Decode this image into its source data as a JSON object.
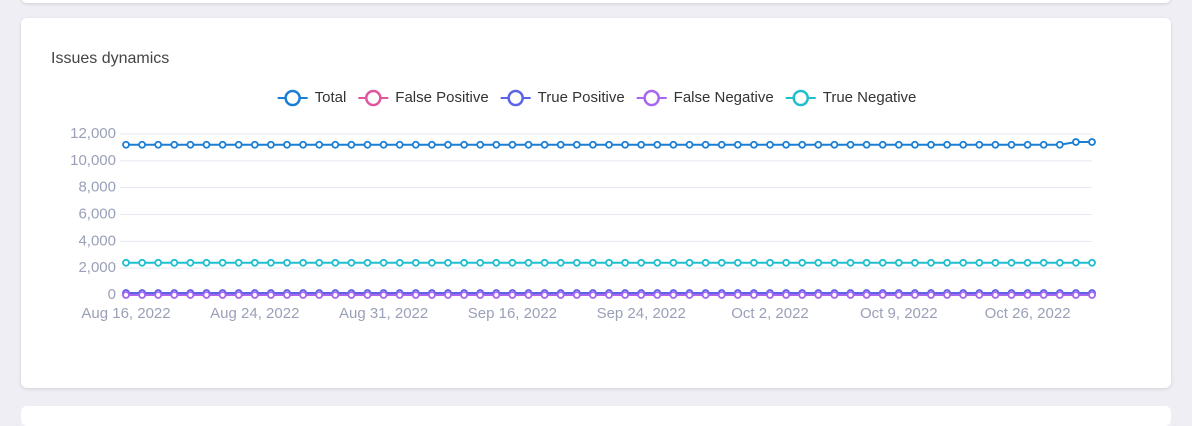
{
  "chart_data": {
    "type": "line",
    "title": "Issues dynamics",
    "categories": [
      "Aug 16, 2022",
      null,
      null,
      null,
      null,
      null,
      null,
      null,
      "Aug 24, 2022",
      null,
      null,
      null,
      null,
      null,
      null,
      null,
      "Aug 31, 2022",
      null,
      null,
      null,
      null,
      null,
      null,
      null,
      "Sep 16, 2022",
      null,
      null,
      null,
      null,
      null,
      null,
      null,
      "Sep 24, 2022",
      null,
      null,
      null,
      null,
      null,
      null,
      null,
      "Oct 2, 2022",
      null,
      null,
      null,
      null,
      null,
      null,
      null,
      "Oct 9, 2022",
      null,
      null,
      null,
      null,
      null,
      null,
      null,
      "Oct 26, 2022",
      null,
      null,
      null,
      null
    ],
    "series": [
      {
        "name": "Total",
        "color": "#1a7fd4",
        "values": [
          11200,
          11200,
          11200,
          11200,
          11200,
          11200,
          11200,
          11200,
          11200,
          11200,
          11200,
          11200,
          11200,
          11200,
          11200,
          11200,
          11200,
          11200,
          11200,
          11200,
          11200,
          11200,
          11200,
          11200,
          11200,
          11200,
          11200,
          11200,
          11200,
          11200,
          11200,
          11200,
          11200,
          11200,
          11200,
          11200,
          11200,
          11200,
          11200,
          11200,
          11200,
          11200,
          11200,
          11200,
          11200,
          11200,
          11200,
          11200,
          11200,
          11200,
          11200,
          11200,
          11200,
          11200,
          11200,
          11200,
          11200,
          11200,
          11200,
          11400,
          11400
        ]
      },
      {
        "name": "False Positive",
        "color": "#e0559c",
        "values": [
          50,
          50,
          50,
          50,
          50,
          50,
          50,
          50,
          50,
          50,
          50,
          50,
          50,
          50,
          50,
          50,
          50,
          50,
          50,
          50,
          50,
          50,
          50,
          50,
          50,
          50,
          50,
          50,
          50,
          50,
          50,
          50,
          50,
          50,
          50,
          50,
          50,
          50,
          50,
          50,
          50,
          50,
          50,
          50,
          50,
          50,
          50,
          50,
          50,
          50,
          50,
          50,
          50,
          50,
          50,
          50,
          50,
          50,
          50,
          50,
          50
        ]
      },
      {
        "name": "True Positive",
        "color": "#5b63e8",
        "values": [
          150,
          150,
          150,
          150,
          150,
          150,
          150,
          150,
          150,
          150,
          150,
          150,
          150,
          150,
          150,
          150,
          150,
          150,
          150,
          150,
          150,
          150,
          150,
          150,
          150,
          150,
          150,
          150,
          150,
          150,
          150,
          150,
          150,
          150,
          150,
          150,
          150,
          150,
          150,
          150,
          150,
          150,
          150,
          150,
          150,
          150,
          150,
          150,
          150,
          150,
          150,
          150,
          150,
          150,
          150,
          150,
          150,
          150,
          150,
          150,
          150
        ]
      },
      {
        "name": "False Negative",
        "color": "#a865f0",
        "values": [
          0,
          0,
          0,
          0,
          0,
          0,
          0,
          0,
          0,
          0,
          0,
          0,
          0,
          0,
          0,
          0,
          0,
          0,
          0,
          0,
          0,
          0,
          0,
          0,
          0,
          0,
          0,
          0,
          0,
          0,
          0,
          0,
          0,
          0,
          0,
          0,
          0,
          0,
          0,
          0,
          0,
          0,
          0,
          0,
          0,
          0,
          0,
          0,
          0,
          0,
          0,
          0,
          0,
          0,
          0,
          0,
          0,
          0,
          0,
          0,
          0
        ]
      },
      {
        "name": "True Negative",
        "color": "#1fbfcf",
        "values": [
          2400,
          2400,
          2400,
          2400,
          2400,
          2400,
          2400,
          2400,
          2400,
          2400,
          2400,
          2400,
          2400,
          2400,
          2400,
          2400,
          2400,
          2400,
          2400,
          2400,
          2400,
          2400,
          2400,
          2400,
          2400,
          2400,
          2400,
          2400,
          2400,
          2400,
          2400,
          2400,
          2400,
          2400,
          2400,
          2400,
          2400,
          2400,
          2400,
          2400,
          2400,
          2400,
          2400,
          2400,
          2400,
          2400,
          2400,
          2400,
          2400,
          2400,
          2400,
          2400,
          2400,
          2400,
          2400,
          2400,
          2400,
          2400,
          2400,
          2400,
          2400
        ]
      }
    ],
    "ylim": [
      0,
      12000
    ],
    "yticks": [
      0,
      {
        "value": 2000,
        "label": "2,000"
      },
      {
        "value": 4000,
        "label": "4,000"
      },
      {
        "value": 6000,
        "label": "6,000"
      },
      {
        "value": 8000,
        "label": "8,000"
      },
      {
        "value": 10000,
        "label": "10,000"
      },
      {
        "value": 12000,
        "label": "12,000"
      }
    ],
    "grid": true
  }
}
